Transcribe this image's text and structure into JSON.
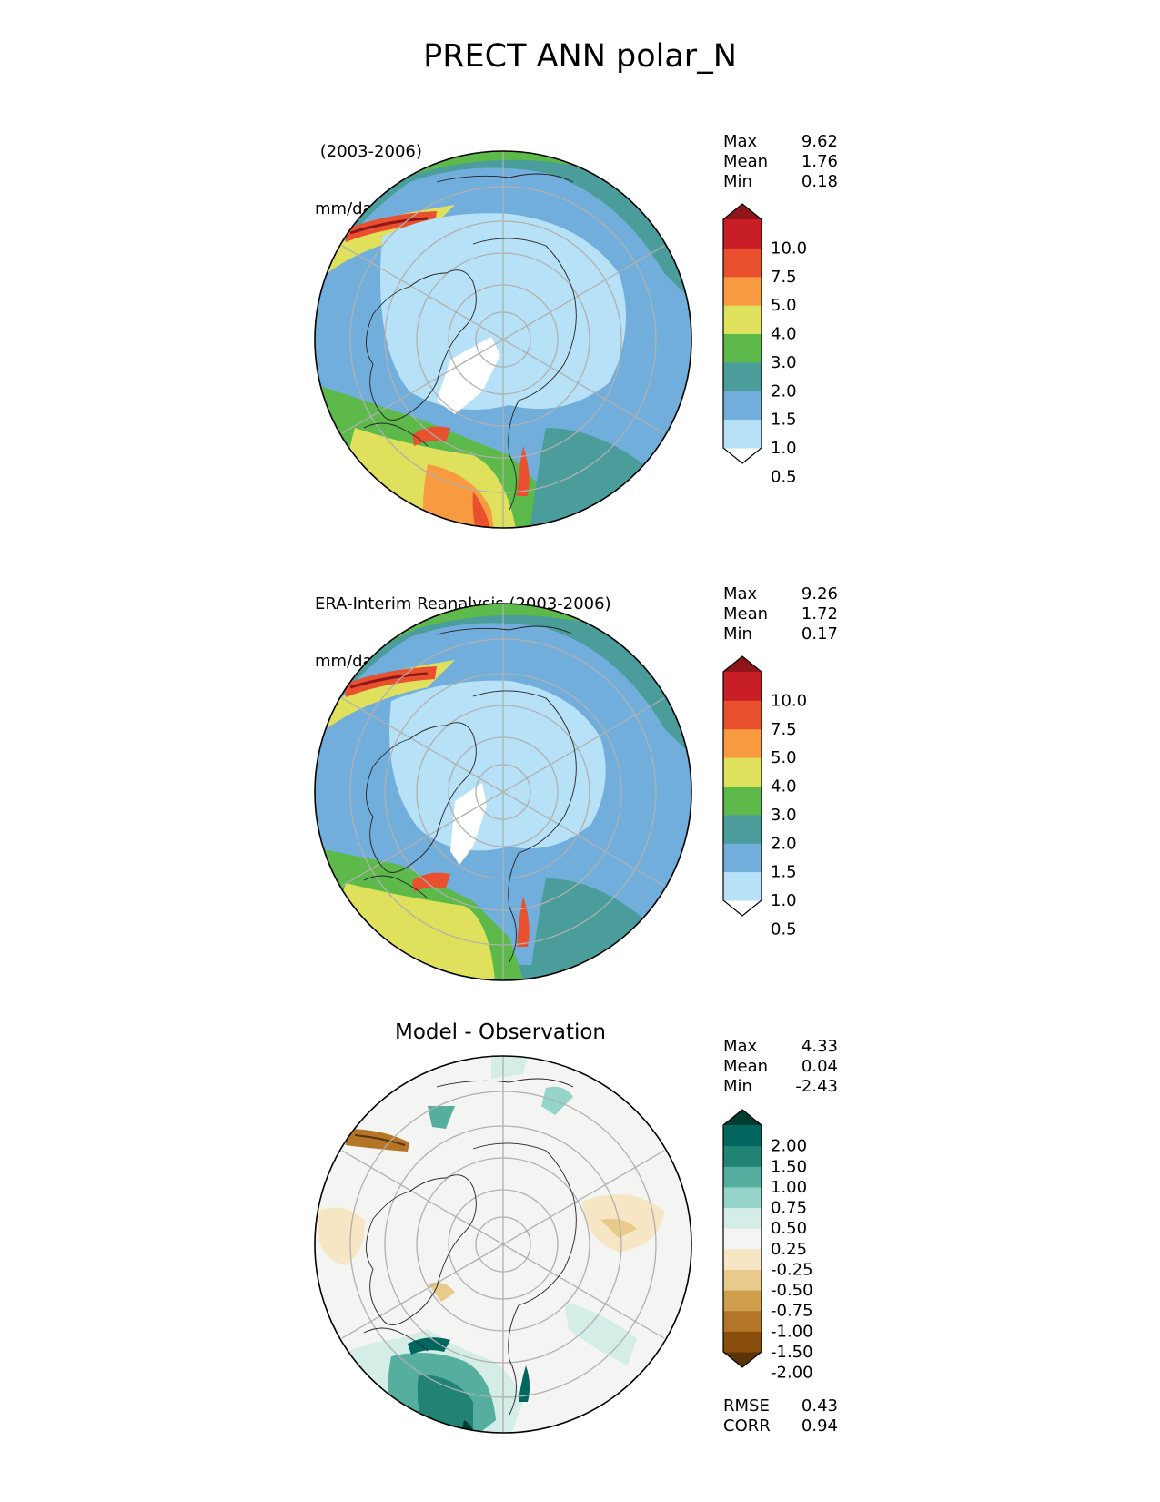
{
  "title": "PRECT ANN polar_N",
  "colors": {
    "abs_levels": [
      "#ffffff",
      "#b7e1f6",
      "#72aedc",
      "#4a9d9b",
      "#5cb94a",
      "#dfe05c",
      "#f89a40",
      "#e8502e",
      "#c81f27",
      "#8e1619"
    ],
    "diff_levels": [
      "#5a3308",
      "#8a4e0c",
      "#b57526",
      "#cf9f4c",
      "#e8cb8c",
      "#f6e6c4",
      "#f4f4f2",
      "#d4ede7",
      "#95d4c8",
      "#56ae9f",
      "#218374",
      "#01665e",
      "#003c30"
    ]
  },
  "panels": [
    {
      "label_line1": " (2003-2006)",
      "label_line2": "mm/day",
      "stats": [
        {
          "k": "Max",
          "v": "9.62"
        },
        {
          "k": "Mean",
          "v": "1.76"
        },
        {
          "k": "Min",
          "v": "0.18"
        }
      ],
      "colorbar": {
        "ticks": [
          "10.0",
          "7.5",
          "5.0",
          "4.0",
          "3.0",
          "2.0",
          "1.5",
          "1.0",
          "0.5"
        ]
      }
    },
    {
      "label_line1": "ERA-Interim Reanalysis (2003-2006)",
      "label_line2": "mm/day",
      "stats": [
        {
          "k": "Max",
          "v": "9.26"
        },
        {
          "k": "Mean",
          "v": "1.72"
        },
        {
          "k": "Min",
          "v": "0.17"
        }
      ],
      "colorbar": {
        "ticks": [
          "10.0",
          "7.5",
          "5.0",
          "4.0",
          "3.0",
          "2.0",
          "1.5",
          "1.0",
          "0.5"
        ]
      }
    },
    {
      "title": "Model - Observation",
      "stats": [
        {
          "k": "Max",
          "v": "4.33"
        },
        {
          "k": "Mean",
          "v": "0.04"
        },
        {
          "k": "Min",
          "v": "-2.43"
        }
      ],
      "colorbar": {
        "ticks": [
          "2.00",
          "1.50",
          "1.00",
          "0.75",
          "0.50",
          "0.25",
          "-0.25",
          "-0.50",
          "-0.75",
          "-1.00",
          "-1.50",
          "-2.00"
        ]
      },
      "metrics": [
        {
          "k": "RMSE",
          "v": "0.43"
        },
        {
          "k": "CORR",
          "v": "0.94"
        }
      ]
    }
  ]
}
